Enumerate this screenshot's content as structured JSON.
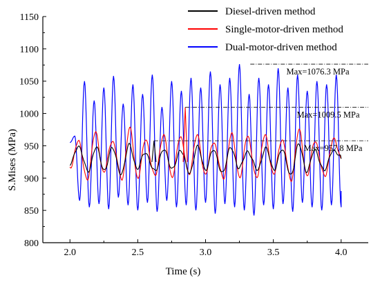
{
  "chart_data": {
    "type": "line",
    "title": "",
    "xlabel": "Time (s)",
    "ylabel": "S.Mises (MPa)",
    "xlim": [
      1.8,
      4.2
    ],
    "ylim": [
      800,
      1150
    ],
    "xticks": [
      "2.0",
      "2.5",
      "3.0",
      "3.5",
      "4.0"
    ],
    "yticks": [
      "800",
      "850",
      "900",
      "950",
      "1000",
      "1050",
      "1100",
      "1150"
    ],
    "legend_position": "top-right",
    "series": [
      {
        "name": "Diesel-driven method",
        "color": "#000000",
        "x": [
          2.0,
          2.06,
          2.13,
          2.19,
          2.25,
          2.31,
          2.38,
          2.44,
          2.5,
          2.56,
          2.63,
          2.69,
          2.75,
          2.81,
          2.88,
          2.94,
          3.0,
          3.06,
          3.13,
          3.19,
          3.25,
          3.31,
          3.38,
          3.44,
          3.5,
          3.56,
          3.63,
          3.69,
          3.75,
          3.81,
          3.88,
          3.94,
          4.0
        ],
        "values": [
          918,
          952,
          910,
          947,
          914,
          944,
          909,
          950,
          915,
          940,
          908,
          948,
          912,
          943,
          910,
          946,
          916,
          941,
          909,
          949,
          913,
          944,
          911,
          947,
          914,
          942,
          908,
          950,
          912,
          943,
          910,
          946,
          930
        ],
        "max_value": 957.8,
        "max_at": 2.62
      },
      {
        "name": "Single-motor-driven method",
        "color": "#ff0000",
        "x": [
          2.0,
          2.06,
          2.13,
          2.19,
          2.25,
          2.31,
          2.38,
          2.44,
          2.5,
          2.56,
          2.63,
          2.69,
          2.75,
          2.81,
          2.88,
          2.94,
          3.0,
          3.06,
          3.13,
          3.19,
          3.25,
          3.31,
          3.38,
          3.44,
          3.5,
          3.56,
          3.63,
          3.69,
          3.75,
          3.81,
          3.88,
          3.94,
          4.0
        ],
        "values": [
          918,
          955,
          900,
          972,
          906,
          960,
          899,
          975,
          903,
          958,
          902,
          970,
          900,
          962,
          910,
          965,
          905,
          958,
          898,
          968,
          904,
          962,
          901,
          970,
          903,
          960,
          899,
          972,
          905,
          958,
          900,
          962,
          930
        ],
        "max_value": 1009.5,
        "max_at": 2.85
      },
      {
        "name": "Dual-motor-driven method",
        "color": "#0000ff",
        "x_start": 2.0,
        "x_end": 4.0,
        "cycles": 28,
        "peaks": [
          965,
          1050,
          1020,
          1040,
          1058,
          1015,
          1045,
          1030,
          1060,
          1010,
          1050,
          1035,
          1055,
          1040,
          1065,
          1045,
          1055,
          1076.3,
          1030,
          1055,
          1045,
          1070,
          1040,
          1060,
          1035,
          1050,
          1045,
          1060
        ],
        "troughs": [
          865,
          855,
          860,
          852,
          870,
          858,
          850,
          862,
          848,
          865,
          855,
          858,
          850,
          862,
          845,
          860,
          855,
          850,
          842,
          858,
          852,
          860,
          848,
          862,
          855,
          850,
          858,
          855
        ],
        "end_value": 880,
        "max_value": 1076.3,
        "max_at": 3.33
      }
    ],
    "annotations": [
      {
        "text": "Max=1076.3 MPa",
        "x_from": 3.33,
        "y": 1076.3
      },
      {
        "text": "Max=1009.5 MPa",
        "x_from": 2.85,
        "y": 1009.5
      },
      {
        "text": "Max=957.8 MPa",
        "x_from": 2.62,
        "y": 957.8
      }
    ]
  }
}
